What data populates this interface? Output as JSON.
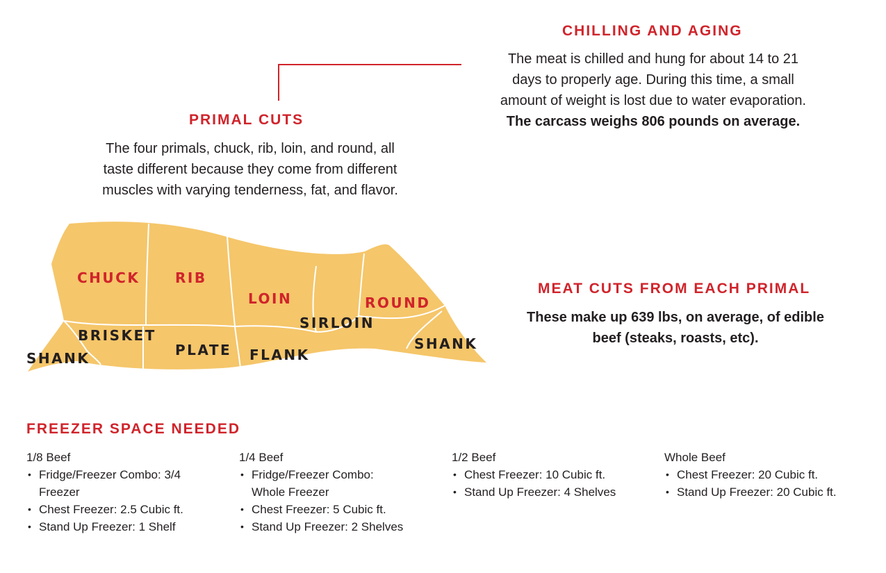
{
  "chilling": {
    "title": "CHILLING AND AGING",
    "lines": [
      "The meat is chilled and hung for about 14 to 21",
      "days to properly age. During this time, a small",
      "amount of weight is lost due to water evaporation."
    ],
    "bold_line": "The carcass weighs 806 pounds on average."
  },
  "primal": {
    "title": "PRIMAL CUTS",
    "lines": [
      "The four primals, chuck, rib, loin, and round, all",
      "taste different because they come from different",
      "muscles with varying tenderness, fat, and flavor."
    ]
  },
  "meat_cuts": {
    "title": "MEAT CUTS FROM EACH PRIMAL",
    "lines": [
      "These make up 639 lbs, on average, of edible",
      "beef (steaks, roasts, etc)."
    ]
  },
  "diagram": {
    "colors": {
      "fill": "#f5c66a",
      "divider": "#ffffff",
      "primal_label": "#d0242b",
      "sub_label": "#231f20"
    },
    "labels": {
      "chuck": "CHUCK",
      "rib": "RIB",
      "loin": "LOIN",
      "round": "ROUND",
      "brisket": "BRISKET",
      "plate": "PLATE",
      "flank": "FLANK",
      "sirloin": "SIRLOIN",
      "shank_front": "SHANK",
      "shank_rear": "SHANK"
    }
  },
  "freezer": {
    "title": "FREEZER SPACE NEEDED",
    "columns": [
      {
        "title": "1/8 Beef",
        "items": [
          "Fridge/Freezer Combo: 3/4 Freezer",
          "Chest Freezer: 2.5 Cubic ft.",
          "Stand Up Freezer: 1 Shelf"
        ]
      },
      {
        "title": "1/4 Beef",
        "items": [
          "Fridge/Freezer Combo: Whole Freezer",
          "Chest Freezer: 5 Cubic ft.",
          "Stand Up Freezer: 2 Shelves"
        ]
      },
      {
        "title": "1/2 Beef",
        "items": [
          "Chest Freezer: 10 Cubic ft.",
          "Stand Up Freezer: 4 Shelves"
        ]
      },
      {
        "title": "Whole Beef",
        "items": [
          "Chest Freezer: 20 Cubic ft.",
          "Stand Up Freezer: 20 Cubic ft."
        ]
      }
    ]
  }
}
